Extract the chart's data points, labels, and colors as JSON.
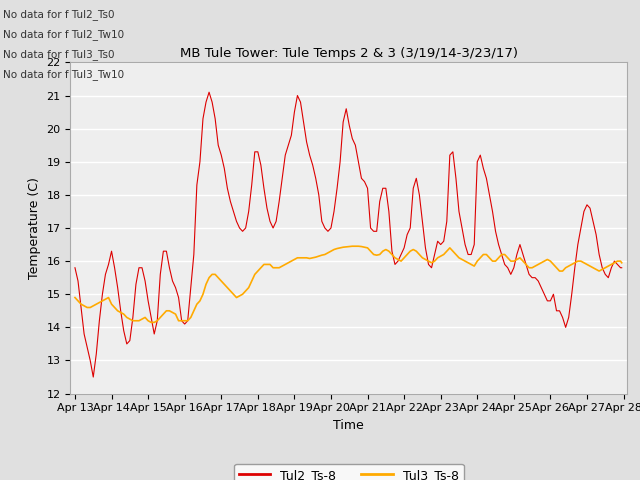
{
  "title": "MB Tule Tower: Tule Temps 2 & 3 (3/19/14-3/23/17)",
  "xlabel": "Time",
  "ylabel": "Temperature (C)",
  "ylim": [
    12.0,
    22.0
  ],
  "yticks": [
    12.0,
    13.0,
    14.0,
    15.0,
    16.0,
    17.0,
    18.0,
    19.0,
    20.0,
    21.0,
    22.0
  ],
  "legend_labels": [
    "Tul2_Ts-8",
    "Tul3_Ts-8"
  ],
  "tul2_color": "#dd0000",
  "tul3_color": "#ffaa00",
  "bg_color": "#e0e0e0",
  "plot_bg_color": "#eeeeee",
  "no_data_texts": [
    "No data for f Tul2_Ts0",
    "No data for f Tul2_Tw10",
    "No data for f Tul3_Ts0",
    "No data for f Tul3_Tw10"
  ],
  "tul2_x": [
    0.0,
    0.083,
    0.167,
    0.25,
    0.333,
    0.417,
    0.5,
    0.583,
    0.667,
    0.75,
    0.833,
    0.917,
    1.0,
    1.083,
    1.167,
    1.25,
    1.333,
    1.417,
    1.5,
    1.583,
    1.667,
    1.75,
    1.833,
    1.917,
    2.0,
    2.083,
    2.167,
    2.25,
    2.333,
    2.417,
    2.5,
    2.583,
    2.667,
    2.75,
    2.833,
    2.917,
    3.0,
    3.083,
    3.167,
    3.25,
    3.333,
    3.417,
    3.5,
    3.583,
    3.667,
    3.75,
    3.833,
    3.917,
    4.0,
    4.083,
    4.167,
    4.25,
    4.333,
    4.417,
    4.5,
    4.583,
    4.667,
    4.75,
    4.833,
    4.917,
    5.0,
    5.083,
    5.167,
    5.25,
    5.333,
    5.417,
    5.5,
    5.583,
    5.667,
    5.75,
    5.833,
    5.917,
    6.0,
    6.083,
    6.167,
    6.25,
    6.333,
    6.417,
    6.5,
    6.583,
    6.667,
    6.75,
    6.833,
    6.917,
    7.0,
    7.083,
    7.167,
    7.25,
    7.333,
    7.417,
    7.5,
    7.583,
    7.667,
    7.75,
    7.833,
    7.917,
    8.0,
    8.083,
    8.167,
    8.25,
    8.333,
    8.417,
    8.5,
    8.583,
    8.667,
    8.75,
    8.833,
    8.917,
    9.0,
    9.083,
    9.167,
    9.25,
    9.333,
    9.417,
    9.5,
    9.583,
    9.667,
    9.75,
    9.833,
    9.917,
    10.0,
    10.083,
    10.167,
    10.25,
    10.333,
    10.417,
    10.5,
    10.583,
    10.667,
    10.75,
    10.833,
    10.917,
    11.0,
    11.083,
    11.167,
    11.25,
    11.333,
    11.417,
    11.5,
    11.583,
    11.667,
    11.75,
    11.833,
    11.917,
    12.0,
    12.083,
    12.167,
    12.25,
    12.333,
    12.417,
    12.5,
    12.583,
    12.667,
    12.75,
    12.833,
    12.917,
    13.0,
    13.083,
    13.167,
    13.25,
    13.333,
    13.417,
    13.5,
    13.583,
    13.667,
    13.75,
    13.833,
    13.917,
    14.0,
    14.083,
    14.167,
    14.25,
    14.333,
    14.417,
    14.5,
    14.583,
    14.667,
    14.75,
    14.833,
    14.917,
    14.95
  ],
  "tul2_y": [
    15.8,
    15.4,
    14.6,
    13.8,
    13.4,
    13.0,
    12.5,
    13.2,
    14.2,
    15.0,
    15.6,
    15.9,
    16.3,
    15.8,
    15.2,
    14.5,
    13.9,
    13.5,
    13.6,
    14.3,
    15.3,
    15.8,
    15.8,
    15.4,
    14.8,
    14.3,
    13.8,
    14.2,
    15.6,
    16.3,
    16.3,
    15.8,
    15.4,
    15.2,
    14.9,
    14.2,
    14.1,
    14.2,
    15.2,
    16.2,
    18.3,
    19.0,
    20.3,
    20.8,
    21.1,
    20.8,
    20.3,
    19.5,
    19.2,
    18.8,
    18.2,
    17.8,
    17.5,
    17.2,
    17.0,
    16.9,
    17.0,
    17.5,
    18.3,
    19.3,
    19.3,
    18.9,
    18.2,
    17.6,
    17.2,
    17.0,
    17.2,
    17.8,
    18.5,
    19.2,
    19.5,
    19.8,
    20.5,
    21.0,
    20.8,
    20.2,
    19.6,
    19.2,
    18.9,
    18.5,
    18.0,
    17.2,
    17.0,
    16.9,
    17.0,
    17.5,
    18.2,
    19.0,
    20.2,
    20.6,
    20.1,
    19.7,
    19.5,
    19.0,
    18.5,
    18.4,
    18.2,
    17.0,
    16.9,
    16.9,
    17.8,
    18.2,
    18.2,
    17.5,
    16.3,
    15.9,
    16.0,
    16.2,
    16.4,
    16.8,
    17.0,
    18.2,
    18.5,
    18.0,
    17.2,
    16.4,
    15.9,
    15.8,
    16.2,
    16.6,
    16.5,
    16.6,
    17.2,
    19.2,
    19.3,
    18.5,
    17.5,
    17.0,
    16.5,
    16.2,
    16.2,
    16.5,
    19.0,
    19.2,
    18.8,
    18.5,
    18.0,
    17.5,
    16.9,
    16.5,
    16.2,
    15.9,
    15.8,
    15.6,
    15.8,
    16.2,
    16.5,
    16.2,
    15.9,
    15.6,
    15.5,
    15.5,
    15.4,
    15.2,
    15.0,
    14.8,
    14.8,
    15.0,
    14.5,
    14.5,
    14.3,
    14.0,
    14.3,
    15.0,
    15.8,
    16.5,
    17.0,
    17.5,
    17.7,
    17.6,
    17.2,
    16.8,
    16.2,
    15.8,
    15.6,
    15.5,
    15.8,
    16.0,
    15.9,
    15.8,
    15.8
  ],
  "tul3_x": [
    0.0,
    0.083,
    0.167,
    0.25,
    0.333,
    0.417,
    0.5,
    0.583,
    0.667,
    0.75,
    0.833,
    0.917,
    1.0,
    1.083,
    1.167,
    1.25,
    1.333,
    1.417,
    1.5,
    1.583,
    1.667,
    1.75,
    1.833,
    1.917,
    2.0,
    2.083,
    2.167,
    2.25,
    2.333,
    2.417,
    2.5,
    2.583,
    2.667,
    2.75,
    2.833,
    2.917,
    3.0,
    3.083,
    3.167,
    3.25,
    3.333,
    3.417,
    3.5,
    3.583,
    3.667,
    3.75,
    3.833,
    3.917,
    4.0,
    4.083,
    4.167,
    4.25,
    4.333,
    4.417,
    4.5,
    4.583,
    4.667,
    4.75,
    4.833,
    4.917,
    5.0,
    5.083,
    5.167,
    5.25,
    5.333,
    5.417,
    5.5,
    5.583,
    5.667,
    5.75,
    5.833,
    5.917,
    6.0,
    6.083,
    6.167,
    6.25,
    6.333,
    6.417,
    6.5,
    6.583,
    6.667,
    6.75,
    6.833,
    6.917,
    7.0,
    7.083,
    7.167,
    7.25,
    7.333,
    7.417,
    7.5,
    7.583,
    7.667,
    7.75,
    7.833,
    7.917,
    8.0,
    8.083,
    8.167,
    8.25,
    8.333,
    8.417,
    8.5,
    8.583,
    8.667,
    8.75,
    8.833,
    8.917,
    9.0,
    9.083,
    9.167,
    9.25,
    9.333,
    9.417,
    9.5,
    9.583,
    9.667,
    9.75,
    9.833,
    9.917,
    10.0,
    10.083,
    10.167,
    10.25,
    10.333,
    10.417,
    10.5,
    10.583,
    10.667,
    10.75,
    10.833,
    10.917,
    11.0,
    11.083,
    11.167,
    11.25,
    11.333,
    11.417,
    11.5,
    11.583,
    11.667,
    11.75,
    11.833,
    11.917,
    12.0,
    12.083,
    12.167,
    12.25,
    12.333,
    12.417,
    12.5,
    12.583,
    12.667,
    12.75,
    12.833,
    12.917,
    13.0,
    13.083,
    13.167,
    13.25,
    13.333,
    13.417,
    13.5,
    13.583,
    13.667,
    13.75,
    13.833,
    13.917,
    14.0,
    14.083,
    14.167,
    14.25,
    14.333,
    14.417,
    14.5,
    14.583,
    14.667,
    14.75,
    14.833,
    14.917,
    14.95
  ],
  "tul3_y": [
    14.9,
    14.8,
    14.7,
    14.65,
    14.6,
    14.6,
    14.65,
    14.7,
    14.75,
    14.8,
    14.85,
    14.9,
    14.7,
    14.6,
    14.5,
    14.45,
    14.4,
    14.3,
    14.25,
    14.2,
    14.2,
    14.2,
    14.25,
    14.3,
    14.2,
    14.15,
    14.15,
    14.2,
    14.3,
    14.4,
    14.5,
    14.5,
    14.45,
    14.4,
    14.2,
    14.2,
    14.2,
    14.2,
    14.3,
    14.5,
    14.7,
    14.8,
    15.0,
    15.3,
    15.5,
    15.6,
    15.6,
    15.5,
    15.4,
    15.3,
    15.2,
    15.1,
    15.0,
    14.9,
    14.95,
    15.0,
    15.1,
    15.2,
    15.4,
    15.6,
    15.7,
    15.8,
    15.9,
    15.9,
    15.9,
    15.8,
    15.8,
    15.8,
    15.85,
    15.9,
    15.95,
    16.0,
    16.05,
    16.1,
    16.1,
    16.1,
    16.1,
    16.08,
    16.1,
    16.12,
    16.15,
    16.18,
    16.2,
    16.25,
    16.3,
    16.35,
    16.38,
    16.4,
    16.42,
    16.43,
    16.44,
    16.45,
    16.45,
    16.45,
    16.44,
    16.42,
    16.4,
    16.3,
    16.2,
    16.18,
    16.2,
    16.3,
    16.35,
    16.3,
    16.2,
    16.1,
    16.05,
    16.0,
    16.1,
    16.2,
    16.3,
    16.35,
    16.3,
    16.2,
    16.1,
    16.05,
    16.0,
    15.95,
    16.0,
    16.1,
    16.15,
    16.2,
    16.3,
    16.4,
    16.3,
    16.2,
    16.1,
    16.05,
    16.0,
    15.95,
    15.9,
    15.85,
    16.0,
    16.1,
    16.2,
    16.2,
    16.1,
    16.0,
    16.0,
    16.1,
    16.2,
    16.2,
    16.1,
    16.0,
    16.0,
    16.05,
    16.1,
    16.0,
    15.9,
    15.8,
    15.8,
    15.85,
    15.9,
    15.95,
    16.0,
    16.05,
    16.0,
    15.9,
    15.8,
    15.7,
    15.7,
    15.8,
    15.85,
    15.9,
    15.95,
    16.0,
    16.0,
    15.95,
    15.9,
    15.85,
    15.8,
    15.75,
    15.7,
    15.75,
    15.8,
    15.85,
    15.9,
    15.95,
    16.0,
    16.0,
    15.95
  ]
}
